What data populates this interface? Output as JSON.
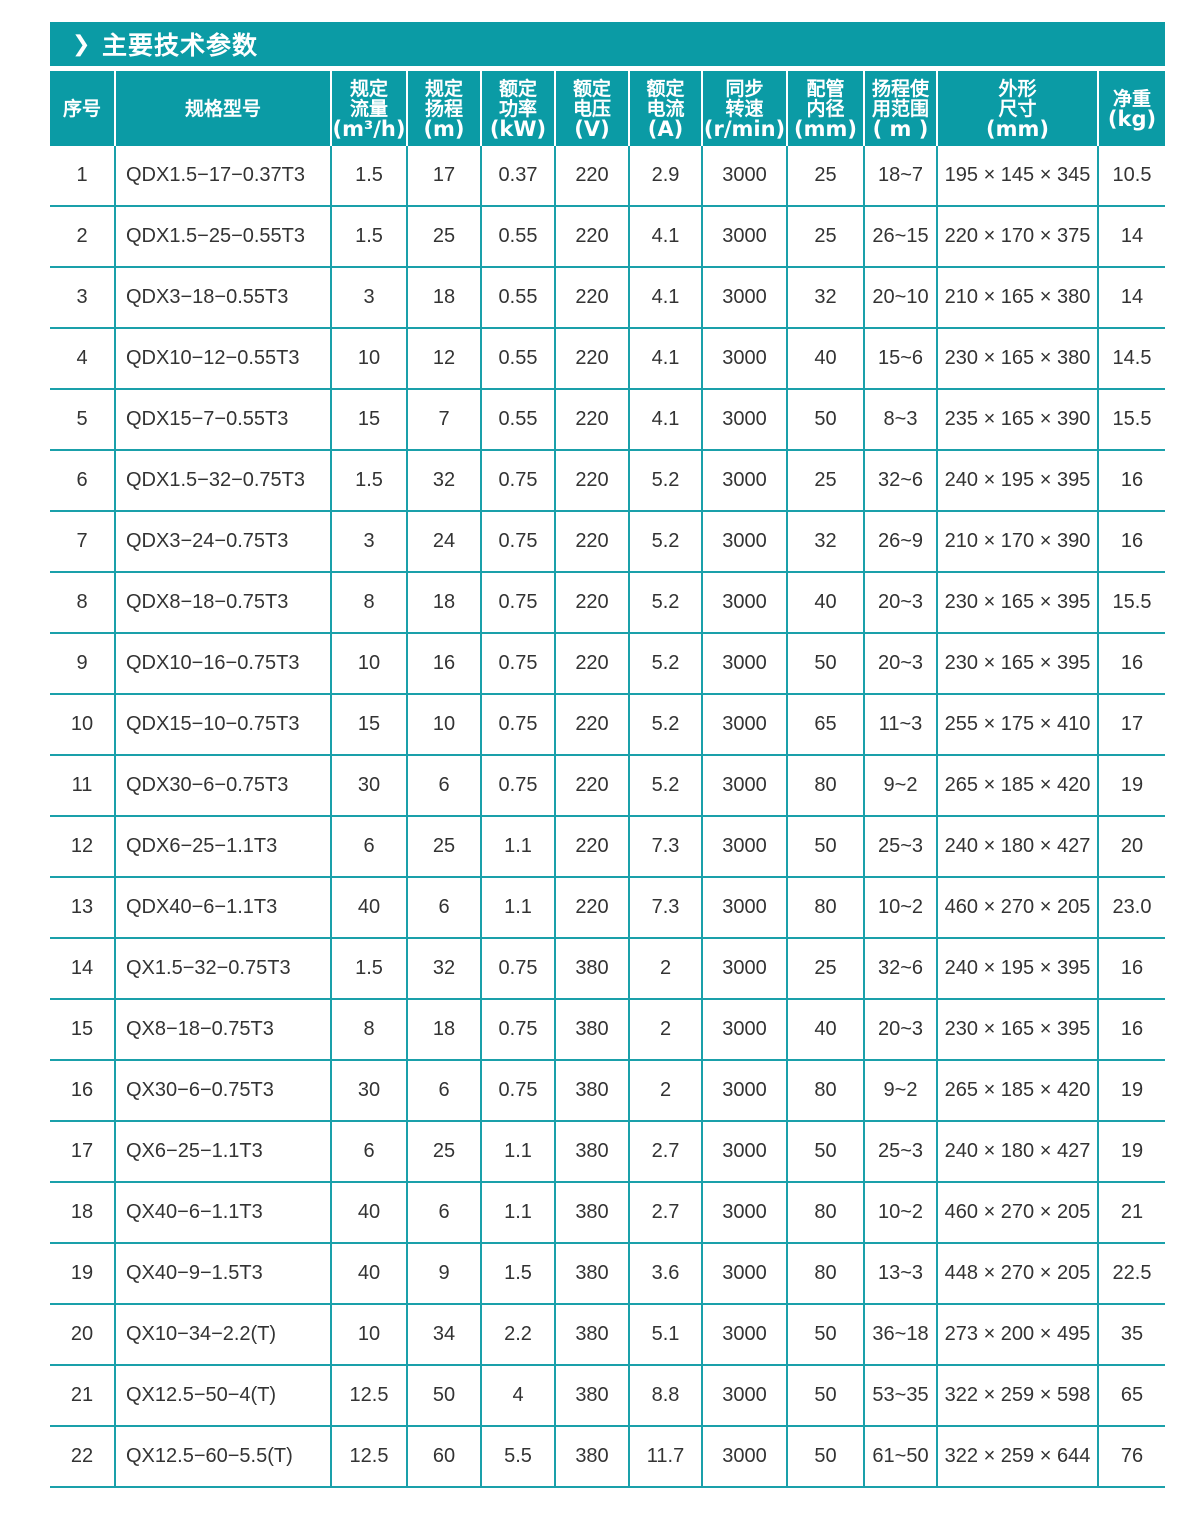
{
  "section": {
    "icon": "chevron-right-icon",
    "title": "主要技术参数"
  },
  "colors": {
    "accent": "#0b9ba5"
  },
  "columns": [
    {
      "l1": "序号",
      "l2": "",
      "unit": ""
    },
    {
      "l1": "规格型号",
      "l2": "",
      "unit": ""
    },
    {
      "l1": "规定",
      "l2": "流量",
      "unit": "(m³/h)"
    },
    {
      "l1": "规定",
      "l2": "扬程",
      "unit": "(m)"
    },
    {
      "l1": "额定",
      "l2": "功率",
      "unit": "(kW)"
    },
    {
      "l1": "额定",
      "l2": "电压",
      "unit": "(V)"
    },
    {
      "l1": "额定",
      "l2": "电流",
      "unit": "(A)"
    },
    {
      "l1": "同步",
      "l2": "转速",
      "unit": "(r/min)"
    },
    {
      "l1": "配管",
      "l2": "内径",
      "unit": "(mm)"
    },
    {
      "l1": "扬程使",
      "l2": "用范围",
      "unit": "( m )"
    },
    {
      "l1": "外形",
      "l2": "尺寸",
      "unit": "(mm)"
    },
    {
      "l1": "净重",
      "l2": "",
      "unit": "(kg)"
    }
  ],
  "rows": [
    [
      "1",
      "QDX1.5−17−0.37T3",
      "1.5",
      "17",
      "0.37",
      "220",
      "2.9",
      "3000",
      "25",
      "18~7",
      "195 × 145 × 345",
      "10.5"
    ],
    [
      "2",
      "QDX1.5−25−0.55T3",
      "1.5",
      "25",
      "0.55",
      "220",
      "4.1",
      "3000",
      "25",
      "26~15",
      "220 × 170 × 375",
      "14"
    ],
    [
      "3",
      "QDX3−18−0.55T3",
      "3",
      "18",
      "0.55",
      "220",
      "4.1",
      "3000",
      "32",
      "20~10",
      "210 × 165 × 380",
      "14"
    ],
    [
      "4",
      "QDX10−12−0.55T3",
      "10",
      "12",
      "0.55",
      "220",
      "4.1",
      "3000",
      "40",
      "15~6",
      "230 × 165 × 380",
      "14.5"
    ],
    [
      "5",
      "QDX15−7−0.55T3",
      "15",
      "7",
      "0.55",
      "220",
      "4.1",
      "3000",
      "50",
      "8~3",
      "235 × 165 × 390",
      "15.5"
    ],
    [
      "6",
      "QDX1.5−32−0.75T3",
      "1.5",
      "32",
      "0.75",
      "220",
      "5.2",
      "3000",
      "25",
      "32~6",
      "240 × 195 × 395",
      "16"
    ],
    [
      "7",
      "QDX3−24−0.75T3",
      "3",
      "24",
      "0.75",
      "220",
      "5.2",
      "3000",
      "32",
      "26~9",
      "210 × 170 × 390",
      "16"
    ],
    [
      "8",
      "QDX8−18−0.75T3",
      "8",
      "18",
      "0.75",
      "220",
      "5.2",
      "3000",
      "40",
      "20~3",
      "230 × 165 × 395",
      "15.5"
    ],
    [
      "9",
      "QDX10−16−0.75T3",
      "10",
      "16",
      "0.75",
      "220",
      "5.2",
      "3000",
      "50",
      "20~3",
      "230 × 165 × 395",
      "16"
    ],
    [
      "10",
      "QDX15−10−0.75T3",
      "15",
      "10",
      "0.75",
      "220",
      "5.2",
      "3000",
      "65",
      "11~3",
      "255 × 175 × 410",
      "17"
    ],
    [
      "11",
      "QDX30−6−0.75T3",
      "30",
      "6",
      "0.75",
      "220",
      "5.2",
      "3000",
      "80",
      "9~2",
      "265 × 185 × 420",
      "19"
    ],
    [
      "12",
      "QDX6−25−1.1T3",
      "6",
      "25",
      "1.1",
      "220",
      "7.3",
      "3000",
      "50",
      "25~3",
      "240 × 180 × 427",
      "20"
    ],
    [
      "13",
      "QDX40−6−1.1T3",
      "40",
      "6",
      "1.1",
      "220",
      "7.3",
      "3000",
      "80",
      "10~2",
      "460 × 270 × 205",
      "23.0"
    ],
    [
      "14",
      "QX1.5−32−0.75T3",
      "1.5",
      "32",
      "0.75",
      "380",
      "2",
      "3000",
      "25",
      "32~6",
      "240 × 195 × 395",
      "16"
    ],
    [
      "15",
      "QX8−18−0.75T3",
      "8",
      "18",
      "0.75",
      "380",
      "2",
      "3000",
      "40",
      "20~3",
      "230 × 165 × 395",
      "16"
    ],
    [
      "16",
      "QX30−6−0.75T3",
      "30",
      "6",
      "0.75",
      "380",
      "2",
      "3000",
      "80",
      "9~2",
      "265 × 185 × 420",
      "19"
    ],
    [
      "17",
      "QX6−25−1.1T3",
      "6",
      "25",
      "1.1",
      "380",
      "2.7",
      "3000",
      "50",
      "25~3",
      "240 × 180 × 427",
      "19"
    ],
    [
      "18",
      "QX40−6−1.1T3",
      "40",
      "6",
      "1.1",
      "380",
      "2.7",
      "3000",
      "80",
      "10~2",
      "460 × 270 × 205",
      "21"
    ],
    [
      "19",
      "QX40−9−1.5T3",
      "40",
      "9",
      "1.5",
      "380",
      "3.6",
      "3000",
      "80",
      "13~3",
      "448 × 270 × 205",
      "22.5"
    ],
    [
      "20",
      "QX10−34−2.2(T)",
      "10",
      "34",
      "2.2",
      "380",
      "5.1",
      "3000",
      "50",
      "36~18",
      "273 × 200 × 495",
      "35"
    ],
    [
      "21",
      "QX12.5−50−4(T)",
      "12.5",
      "50",
      "4",
      "380",
      "8.8",
      "3000",
      "50",
      "53~35",
      "322 × 259 × 598",
      "65"
    ],
    [
      "22",
      "QX12.5−60−5.5(T)",
      "12.5",
      "60",
      "5.5",
      "380",
      "11.7",
      "3000",
      "50",
      "61~50",
      "322 × 259 × 644",
      "76"
    ]
  ]
}
